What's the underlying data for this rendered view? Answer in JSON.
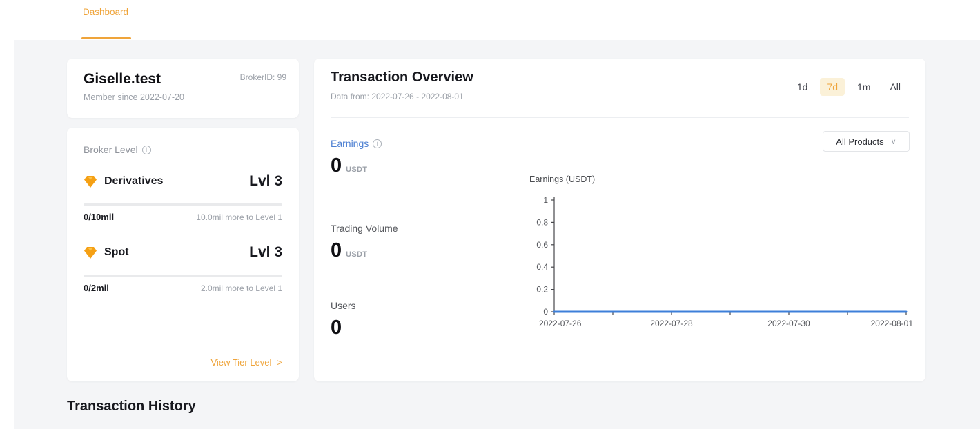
{
  "colors": {
    "accent": "#efa43a",
    "accent_bg": "#fbf1d8",
    "metric_blue": "#4c7fd2",
    "chart_line": "#3d7fd9",
    "page_bg": "#f4f5f7"
  },
  "icons": {
    "info_letter": "i",
    "chevron_down": "∨",
    "gem": "gem-diamond"
  },
  "nav": {
    "tabs": [
      {
        "label": "Dashboard",
        "active": true
      }
    ]
  },
  "profile_card": {
    "name": "Giselle.test",
    "broker_id_label": "BrokerID: 99",
    "member_since": "Member since 2022-07-20"
  },
  "broker_level_card": {
    "title": "Broker Level",
    "levels": [
      {
        "name": "Derivatives",
        "level": "Lvl 3",
        "progress_label": "0/10mil",
        "more_label": "10.0mil more to Level 1",
        "progress_pct": 0
      },
      {
        "name": "Spot",
        "level": "Lvl 3",
        "progress_label": "0/2mil",
        "more_label": "2.0mil more to Level 1",
        "progress_pct": 0
      }
    ],
    "view_tier": {
      "label": "View Tier Level",
      "arrow": ">"
    }
  },
  "overview": {
    "title": "Transaction Overview",
    "subtitle": "Data from: 2022-07-26 - 2022-08-01",
    "ranges": [
      {
        "label": "1d",
        "selected": false
      },
      {
        "label": "7d",
        "selected": true
      },
      {
        "label": "1m",
        "selected": false
      },
      {
        "label": "All",
        "selected": false
      }
    ],
    "products_dropdown": "All Products",
    "metrics": [
      {
        "label": "Earnings",
        "value": "0",
        "unit": "USDT"
      },
      {
        "label": "Trading Volume",
        "value": "0",
        "unit": "USDT"
      },
      {
        "label": "Users",
        "value": "0",
        "unit": ""
      }
    ]
  },
  "chart_data": {
    "type": "line",
    "title": "Earnings (USDT)",
    "x": [
      "2022-07-26",
      "2022-07-27",
      "2022-07-28",
      "2022-07-29",
      "2022-07-30",
      "2022-07-31",
      "2022-08-01"
    ],
    "x_tick_labels": [
      "2022-07-26",
      "",
      "2022-07-28",
      "",
      "2022-07-30",
      "",
      "2022-08-01"
    ],
    "series": [
      {
        "name": "Earnings",
        "values": [
          0,
          0,
          0,
          0,
          0,
          0,
          0
        ]
      }
    ],
    "xlabel": "",
    "ylabel": "Earnings (USDT)",
    "ylim": [
      0,
      1
    ],
    "yticks": [
      0,
      0.2,
      0.4,
      0.6,
      0.8,
      1
    ],
    "grid": false,
    "legend": "none",
    "line_color": "#3d7fd9"
  },
  "history": {
    "title": "Transaction History"
  }
}
